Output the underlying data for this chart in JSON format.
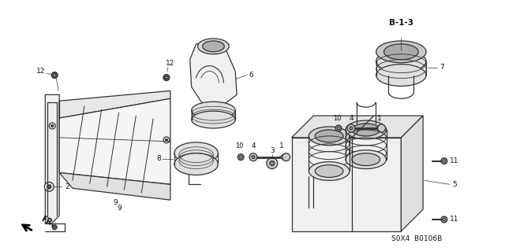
{
  "bg_color": "#ffffff",
  "line_color": "#333333",
  "label_color": "#111111",
  "part_number": "S0X4  B0106B",
  "title": "B-1-3"
}
